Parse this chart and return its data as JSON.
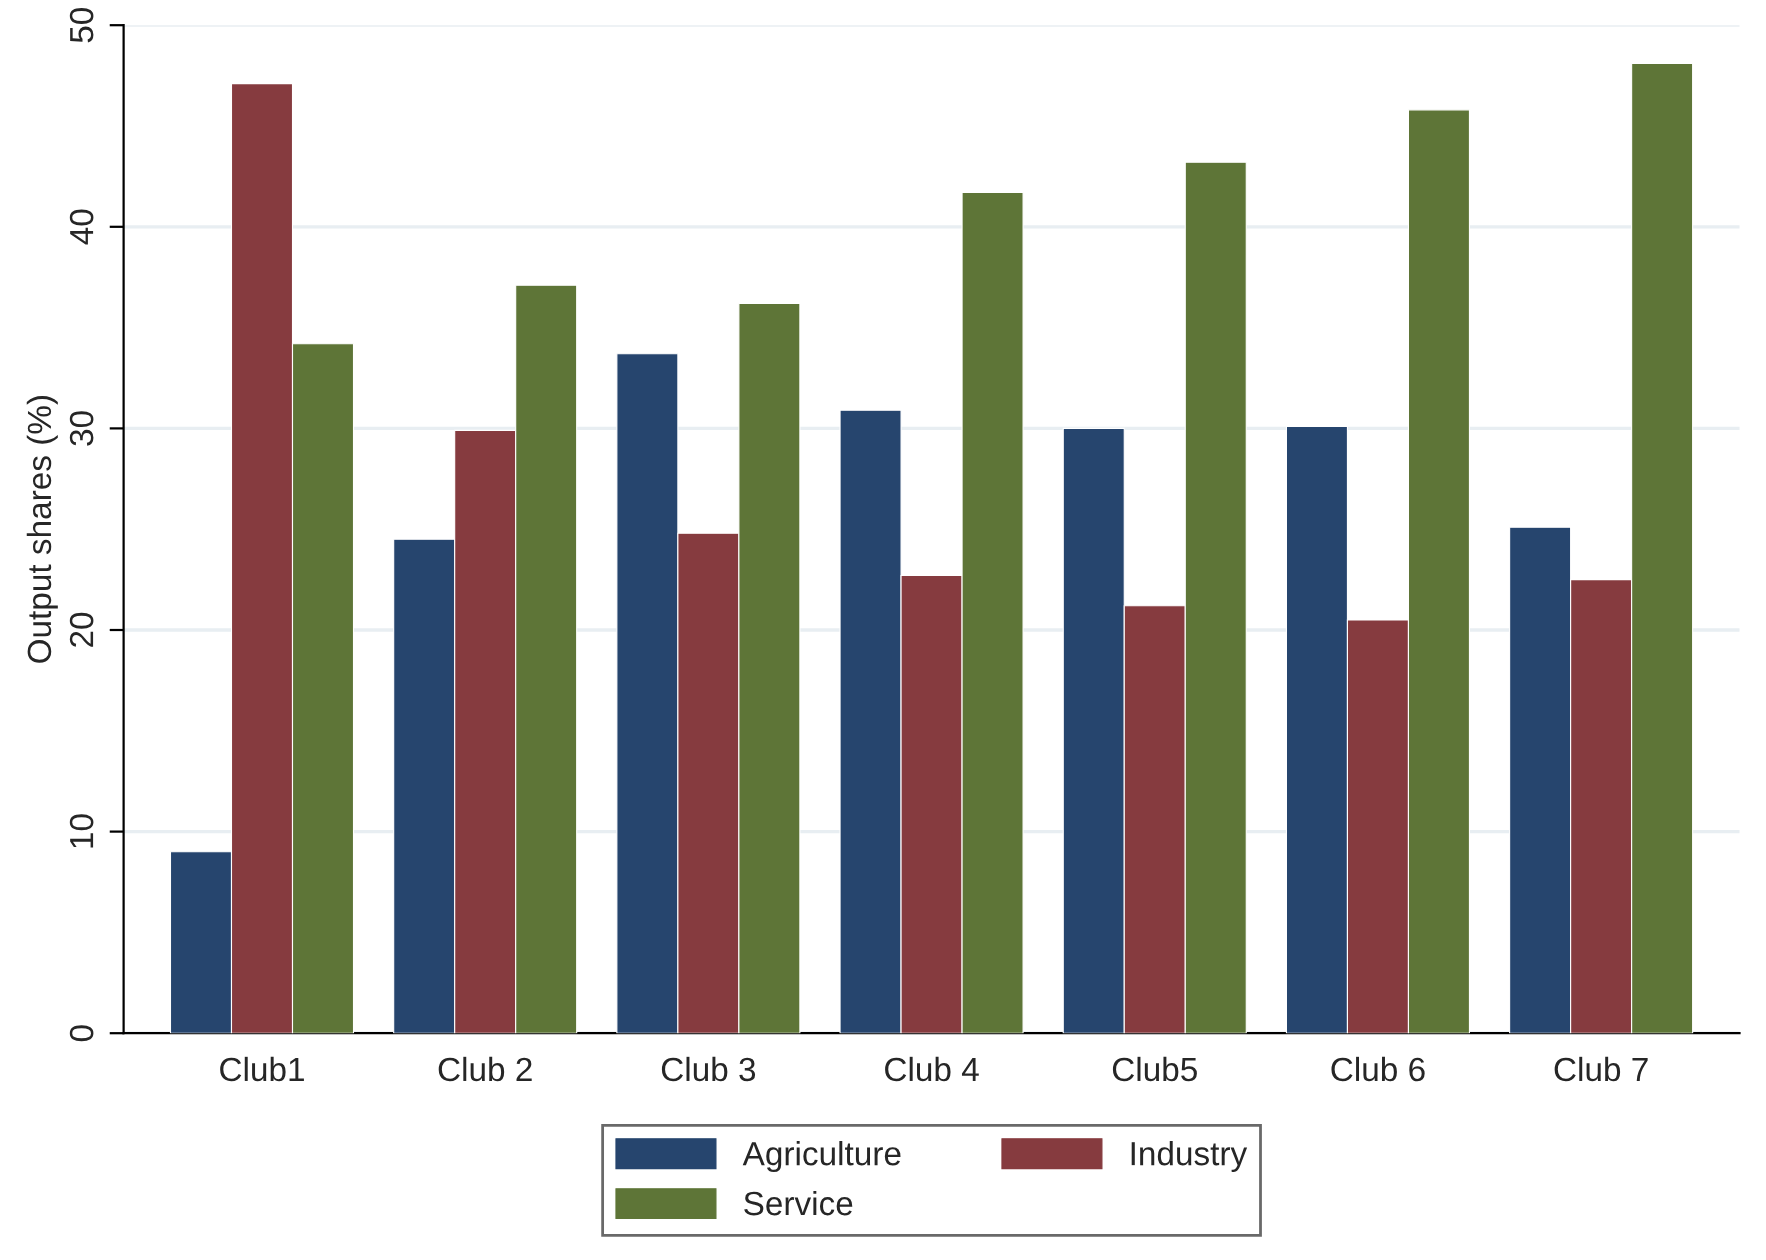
{
  "chart_data": {
    "type": "bar",
    "ylabel": "Output shares (%)",
    "categories": [
      "Club1",
      "Club 2",
      "Club 3",
      "Club 4",
      "Club5",
      "Club 6",
      "Club 7"
    ],
    "series": [
      {
        "name": "Agriculture",
        "color": "#26456e",
        "values": [
          9.0,
          24.5,
          33.7,
          30.9,
          30.0,
          30.1,
          25.1
        ]
      },
      {
        "name": "Industry",
        "color": "#863b3f",
        "values": [
          47.1,
          29.9,
          24.8,
          22.7,
          21.2,
          20.5,
          22.5
        ]
      },
      {
        "name": "Service",
        "color": "#5e7537",
        "values": [
          34.2,
          37.1,
          36.2,
          41.7,
          43.2,
          45.8,
          48.1
        ]
      }
    ],
    "ylim": [
      0,
      50
    ],
    "yticks": [
      0,
      10,
      20,
      30,
      40,
      50
    ],
    "grid": "y",
    "legend": "bottom"
  }
}
